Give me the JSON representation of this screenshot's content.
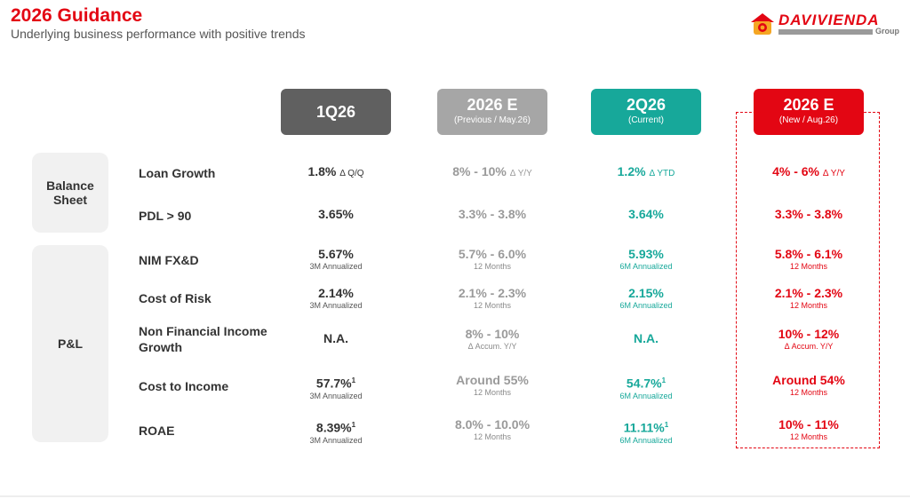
{
  "header": {
    "title": "2026 Guidance",
    "subtitle": "Underlying business performance with positive trends",
    "logo_text": "DAVIVIENDA",
    "logo_sub": "Group"
  },
  "columns": [
    {
      "label": "1Q26",
      "sub": ""
    },
    {
      "label": "2026 E",
      "sub": "(Previous / May.26)"
    },
    {
      "label": "2Q26",
      "sub": "(Current)"
    },
    {
      "label": "2026 E",
      "sub": "(New / Aug.26)"
    }
  ],
  "categories": {
    "balance_sheet": "Balance Sheet",
    "pl": "P&L"
  },
  "rows": [
    {
      "label": "Loan Growth",
      "cells": [
        {
          "v": "1.8%",
          "d": "Δ Q/Q",
          "n": ""
        },
        {
          "v": "8% - 10%",
          "d": "Δ Y/Y",
          "n": ""
        },
        {
          "v": "1.2%",
          "d": "Δ YTD",
          "n": ""
        },
        {
          "v": "4% - 6%",
          "d": "Δ Y/Y",
          "n": ""
        }
      ]
    },
    {
      "label": "PDL > 90",
      "cells": [
        {
          "v": "3.65%",
          "d": "",
          "n": ""
        },
        {
          "v": "3.3% - 3.8%",
          "d": "",
          "n": ""
        },
        {
          "v": "3.64%",
          "d": "",
          "n": ""
        },
        {
          "v": "3.3% - 3.8%",
          "d": "",
          "n": ""
        }
      ]
    },
    {
      "label": "NIM FX&D",
      "cells": [
        {
          "v": "5.67%",
          "d": "",
          "n": "3M Annualized"
        },
        {
          "v": "5.7% - 6.0%",
          "d": "",
          "n": "12 Months"
        },
        {
          "v": "5.93%",
          "d": "",
          "n": "6M Annualized"
        },
        {
          "v": "5.8% - 6.1%",
          "d": "",
          "n": "12 Months"
        }
      ]
    },
    {
      "label": "Cost of Risk",
      "cells": [
        {
          "v": "2.14%",
          "d": "",
          "n": "3M Annualized"
        },
        {
          "v": "2.1% - 2.3%",
          "d": "",
          "n": "12 Months"
        },
        {
          "v": "2.15%",
          "d": "",
          "n": "6M Annualized"
        },
        {
          "v": "2.1% - 2.3%",
          "d": "",
          "n": "12 Months"
        }
      ]
    },
    {
      "label": "Non Financial Income Growth",
      "cells": [
        {
          "v": "N.A.",
          "d": "",
          "n": ""
        },
        {
          "v": "8% - 10%",
          "d": "",
          "n": "Δ Accum. Y/Y"
        },
        {
          "v": "N.A.",
          "d": "",
          "n": ""
        },
        {
          "v": "10% - 12%",
          "d": "",
          "n": "Δ Accum. Y/Y"
        }
      ]
    },
    {
      "label": "Cost to Income",
      "cells": [
        {
          "v": "57.7%",
          "s": "1",
          "d": "",
          "n": "3M Annualized"
        },
        {
          "v": "Around 55%",
          "d": "",
          "n": "12 Months"
        },
        {
          "v": "54.7%",
          "s": "1",
          "d": "",
          "n": "6M Annualized"
        },
        {
          "v": "Around 54%",
          "d": "",
          "n": "12 Months"
        }
      ]
    },
    {
      "label": "ROAE",
      "cells": [
        {
          "v": "8.39%",
          "s": "1",
          "d": "",
          "n": "3M Annualized"
        },
        {
          "v": "8.0% - 10.0%",
          "d": "",
          "n": "12 Months"
        },
        {
          "v": "11.11%",
          "s": "1",
          "d": "",
          "n": "6M Annualized"
        },
        {
          "v": "10% - 11%",
          "d": "",
          "n": "12 Months"
        }
      ]
    }
  ]
}
